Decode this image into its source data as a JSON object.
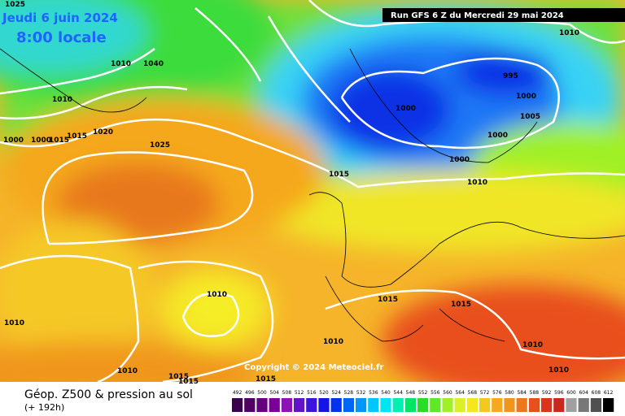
{
  "header": {
    "date": "Jeudi 6 juin 2024",
    "time": "8:00 locale",
    "run": "Run GFS 6 Z du Mercredi 29 mai 2024"
  },
  "copyright": "Copyright © 2024 Meteociel.fr",
  "footer": {
    "title": "Géop. Z500 & pression au sol",
    "lead": "(+ 192h)"
  },
  "isobar_labels": [
    "1025",
    "1010",
    "1010",
    "1040",
    "1000",
    "1000",
    "1015",
    "1015",
    "1020",
    "1025",
    "1000",
    "995",
    "1000",
    "1005",
    "1000",
    "1000",
    "1010",
    "1015",
    "1010",
    "1010",
    "1010",
    "1015",
    "1015",
    "1010",
    "1010",
    "1010",
    "1010",
    "1015",
    "1015",
    "1015"
  ],
  "scale": [
    {
      "label": "492",
      "color": "#3c0050"
    },
    {
      "label": "496",
      "color": "#500064"
    },
    {
      "label": "500",
      "color": "#64007c"
    },
    {
      "label": "504",
      "color": "#780096"
    },
    {
      "label": "508",
      "color": "#8c14b4"
    },
    {
      "label": "512",
      "color": "#6414c8"
    },
    {
      "label": "516",
      "color": "#3c14dc"
    },
    {
      "label": "520",
      "color": "#1414e6"
    },
    {
      "label": "524",
      "color": "#0032f0"
    },
    {
      "label": "528",
      "color": "#0064f5"
    },
    {
      "label": "532",
      "color": "#0096fa"
    },
    {
      "label": "536",
      "color": "#00c8ff"
    },
    {
      "label": "540",
      "color": "#00e6f0"
    },
    {
      "label": "544",
      "color": "#00f0b4"
    },
    {
      "label": "548",
      "color": "#00e664"
    },
    {
      "label": "552",
      "color": "#28dc28"
    },
    {
      "label": "556",
      "color": "#64e628"
    },
    {
      "label": "560",
      "color": "#a0f028"
    },
    {
      "label": "564",
      "color": "#dcf028"
    },
    {
      "label": "568",
      "color": "#f5e61e"
    },
    {
      "label": "572",
      "color": "#f5c81e"
    },
    {
      "label": "576",
      "color": "#f5aa1e"
    },
    {
      "label": "580",
      "color": "#f0961e"
    },
    {
      "label": "584",
      "color": "#eb781e"
    },
    {
      "label": "588",
      "color": "#e6501e"
    },
    {
      "label": "592",
      "color": "#dc321e"
    },
    {
      "label": "596",
      "color": "#c8281e"
    },
    {
      "label": "600",
      "color": "#a0a0a0"
    },
    {
      "label": "604",
      "color": "#787878"
    },
    {
      "label": "608",
      "color": "#505050"
    },
    {
      "label": "612",
      "color": "#000000"
    }
  ]
}
